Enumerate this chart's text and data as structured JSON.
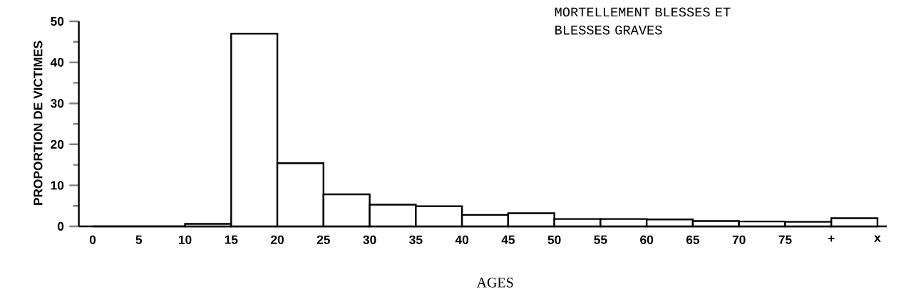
{
  "chart_data": {
    "type": "histogram",
    "title": "MORTELLEMENT BLESSES ET BLESSES GRAVES",
    "xlabel": "AGES",
    "ylabel": "PROPORTION DE VICTIMES",
    "bins": [
      0,
      5,
      10,
      15,
      20,
      25,
      30,
      35,
      40,
      45,
      50,
      55,
      60,
      65,
      70,
      75,
      80,
      85
    ],
    "values": [
      0,
      0,
      0.6,
      47,
      15.4,
      7.8,
      5.3,
      4.9,
      2.8,
      3.2,
      1.8,
      1.8,
      1.7,
      1.3,
      1.2,
      1.1,
      2.0
    ],
    "color": "#ffffff",
    "xlim": [
      -1.5,
      86
    ],
    "ylim": [
      0,
      50
    ],
    "xticks": [
      0,
      5,
      10,
      15,
      20,
      25,
      30,
      35,
      40,
      45,
      50,
      55,
      60,
      65,
      70,
      75,
      {
        "value": 80,
        "label": "+"
      },
      {
        "value": 85,
        "label": "x"
      }
    ],
    "yticks": [
      0,
      10,
      20,
      30,
      40,
      50
    ],
    "grid": false
  }
}
